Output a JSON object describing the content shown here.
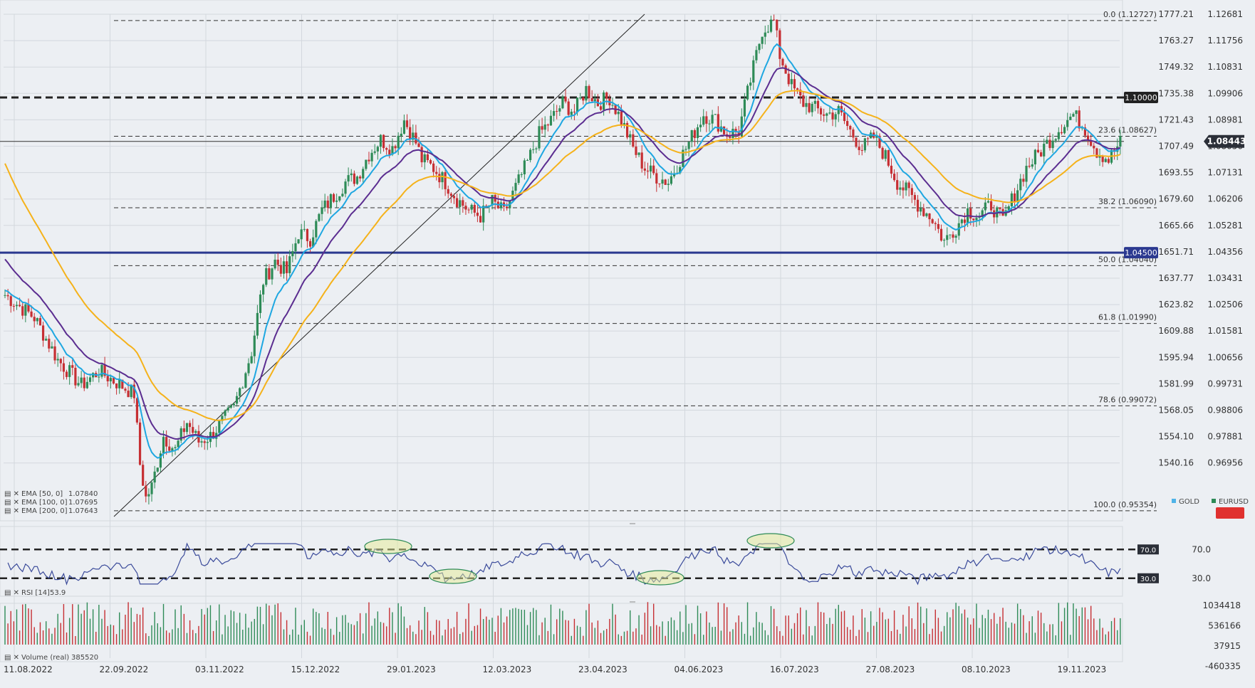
{
  "chart_data": {
    "type": "candlestick",
    "x_axis_labels": [
      "11.08.2022",
      "22.09.2022",
      "03.11.2022",
      "15.12.2022",
      "29.01.2023",
      "12.03.2023",
      "23.04.2023",
      "04.06.2023",
      "16.07.2023",
      "27.08.2023",
      "08.10.2023",
      "19.11.2023"
    ],
    "left_axis_labels": [
      "1777.21",
      "1763.27",
      "1749.32",
      "1735.38",
      "1721.43",
      "1707.49",
      "1693.55",
      "1679.60",
      "1665.66",
      "1651.71",
      "1637.77",
      "1623.82",
      "1609.88",
      "1595.94",
      "1581.99",
      "1568.05",
      "1554.10",
      "1540.16"
    ],
    "right_axis_labels": [
      "1.12681",
      "1.11756",
      "1.10831",
      "1.09906",
      "1.08981",
      "1.08056",
      "1.07131",
      "1.06206",
      "1.05281",
      "1.04356",
      "1.03431",
      "1.02506",
      "1.01581",
      "1.00656",
      "0.99731",
      "0.98806",
      "0.97881",
      "0.96956"
    ],
    "ylim": [
      0.9535,
      1.1295
    ],
    "fib_levels": [
      {
        "label": "0.0 (1.12727)",
        "value": 1.12727
      },
      {
        "label": "23.6 (1.08627)",
        "value": 1.08627
      },
      {
        "label": "38.2 (1.06090)",
        "value": 1.0609
      },
      {
        "label": "50.0 (1.04040)",
        "value": 1.0404
      },
      {
        "label": "61.8 (1.01990)",
        "value": 1.0199
      },
      {
        "label": "78.6 (0.99072)",
        "value": 0.99072
      },
      {
        "label": "100.0 (0.95354)",
        "value": 0.95354
      }
    ],
    "horizontal_levels": [
      {
        "label": "1.10000",
        "value": 1.1,
        "color": "#222222",
        "style": "dashed"
      },
      {
        "label": "1.04500",
        "value": 1.045,
        "color": "#2b3990",
        "style": "solid"
      }
    ],
    "current_price": {
      "label": "1.08443",
      "value": 1.08443
    },
    "ema_legend": [
      {
        "label": "EMA [50, 0]",
        "value": "1.07840",
        "color": "#1ea7e1"
      },
      {
        "label": "EMA [100, 0]",
        "value": "1.07695",
        "color": "#5b2d90"
      },
      {
        "label": "EMA [200, 0]",
        "value": "1.07643",
        "color": "#f5b21a"
      }
    ],
    "legend": [
      {
        "name": "GOLD",
        "color": "#4fb3e8"
      },
      {
        "name": "EURUSD",
        "color": "#2e8b57"
      }
    ],
    "close_path": [
      [
        0,
        1.03
      ],
      [
        10,
        1.022
      ],
      [
        18,
        1.007
      ],
      [
        26,
        0.998
      ],
      [
        32,
        1.003
      ],
      [
        38,
        0.999
      ],
      [
        44,
        0.995
      ],
      [
        46,
        0.97
      ],
      [
        48,
        0.958
      ],
      [
        50,
        0.962
      ],
      [
        54,
        0.98
      ],
      [
        58,
        0.975
      ],
      [
        62,
        0.985
      ],
      [
        66,
        0.978
      ],
      [
        70,
        0.98
      ],
      [
        74,
        0.985
      ],
      [
        78,
        0.99
      ],
      [
        84,
        1.01
      ],
      [
        88,
        1.035
      ],
      [
        92,
        1.042
      ],
      [
        96,
        1.038
      ],
      [
        100,
        1.052
      ],
      [
        104,
        1.05
      ],
      [
        108,
        1.06
      ],
      [
        112,
        1.065
      ],
      [
        116,
        1.07
      ],
      [
        120,
        1.072
      ],
      [
        124,
        1.08
      ],
      [
        128,
        1.085
      ],
      [
        132,
        1.082
      ],
      [
        136,
        1.092
      ],
      [
        140,
        1.084
      ],
      [
        142,
        1.078
      ],
      [
        146,
        1.075
      ],
      [
        150,
        1.07
      ],
      [
        154,
        1.064
      ],
      [
        158,
        1.06
      ],
      [
        162,
        1.058
      ],
      [
        166,
        1.063
      ],
      [
        170,
        1.059
      ],
      [
        174,
        1.068
      ],
      [
        178,
        1.077
      ],
      [
        182,
        1.087
      ],
      [
        186,
        1.092
      ],
      [
        190,
        1.098
      ],
      [
        194,
        1.095
      ],
      [
        198,
        1.103
      ],
      [
        202,
        1.098
      ],
      [
        206,
        1.1
      ],
      [
        210,
        1.092
      ],
      [
        214,
        1.082
      ],
      [
        218,
        1.075
      ],
      [
        222,
        1.072
      ],
      [
        226,
        1.07
      ],
      [
        230,
        1.078
      ],
      [
        234,
        1.086
      ],
      [
        238,
        1.094
      ],
      [
        242,
        1.092
      ],
      [
        246,
        1.087
      ],
      [
        250,
        1.088
      ],
      [
        254,
        1.106
      ],
      [
        258,
        1.124
      ],
      [
        262,
        1.127
      ],
      [
        264,
        1.115
      ],
      [
        268,
        1.104
      ],
      [
        272,
        1.098
      ],
      [
        276,
        1.096
      ],
      [
        280,
        1.094
      ],
      [
        284,
        1.095
      ],
      [
        288,
        1.088
      ],
      [
        292,
        1.082
      ],
      [
        296,
        1.086
      ],
      [
        300,
        1.079
      ],
      [
        304,
        1.07
      ],
      [
        308,
        1.066
      ],
      [
        312,
        1.061
      ],
      [
        316,
        1.057
      ],
      [
        320,
        1.049
      ],
      [
        324,
        1.054
      ],
      [
        328,
        1.06
      ],
      [
        332,
        1.058
      ],
      [
        336,
        1.062
      ],
      [
        340,
        1.056
      ],
      [
        344,
        1.066
      ],
      [
        348,
        1.075
      ],
      [
        352,
        1.08
      ],
      [
        356,
        1.085
      ],
      [
        360,
        1.09
      ],
      [
        364,
        1.094
      ],
      [
        368,
        1.089
      ],
      [
        372,
        1.081
      ],
      [
        376,
        1.078
      ],
      [
        380,
        1.084
      ]
    ],
    "rsi": {
      "label": "RSI [14]",
      "value": "53.9",
      "levels": [
        {
          "label": "70.0",
          "value": 70
        },
        {
          "label": "30.0",
          "value": 30
        }
      ],
      "axis_labels": [
        "70.0",
        "30.0"
      ]
    },
    "volume": {
      "label": "Volume  (real)",
      "value": "385520",
      "axis_labels": [
        "1034418",
        "536166",
        "37915",
        "-460335"
      ]
    }
  }
}
